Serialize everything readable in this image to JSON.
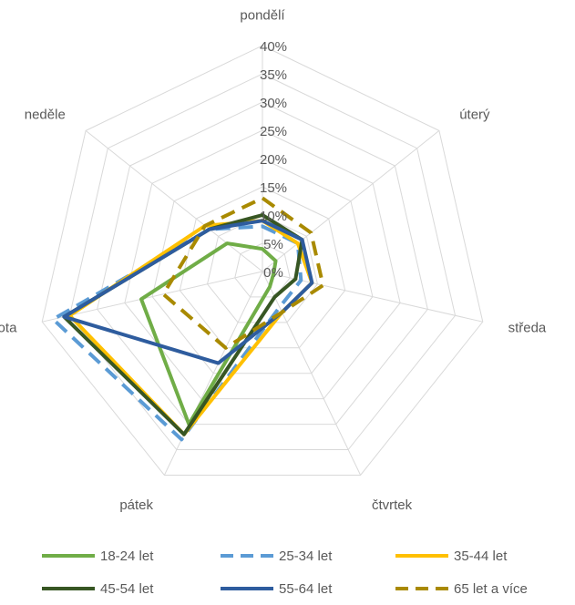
{
  "chart_data": {
    "type": "radar",
    "categories": [
      "pondělí",
      "úterý",
      "středa",
      "čtvrtek",
      "pátek",
      "sobota",
      "neděle"
    ],
    "rlim": [
      0,
      40
    ],
    "ticks": [
      0,
      5,
      10,
      15,
      20,
      25,
      30,
      35,
      40
    ],
    "tick_labels": [
      "0%",
      "5%",
      "10%",
      "15%",
      "20%",
      "25%",
      "30%",
      "35%",
      "40%"
    ],
    "grid": true,
    "legend": "bottom",
    "series": [
      {
        "name": "18-24 let",
        "color": "#70ad47",
        "dash": "solid",
        "width": 4,
        "values": [
          4,
          3,
          2,
          3,
          30,
          22,
          8
        ]
      },
      {
        "name": "25-34 let",
        "color": "#5b9bd5",
        "dash": "dashed",
        "width": 4,
        "values": [
          8,
          8,
          7,
          7,
          33,
          38,
          12
        ]
      },
      {
        "name": "35-44 let",
        "color": "#ffc000",
        "dash": "solid",
        "width": 4,
        "values": [
          9,
          8,
          9,
          8,
          32,
          35,
          13
        ]
      },
      {
        "name": "45-54 let",
        "color": "#375623",
        "dash": "solid",
        "width": 4,
        "values": [
          10,
          9,
          6,
          5,
          32,
          36,
          12
        ]
      },
      {
        "name": "55-64 let",
        "color": "#2e5c9e",
        "dash": "solid",
        "width": 4,
        "values": [
          9,
          9,
          9,
          8,
          18,
          36,
          12
        ]
      },
      {
        "name": "65 let a více",
        "color": "#a98a00",
        "dash": "dashed",
        "width": 4,
        "values": [
          13,
          11,
          11,
          8,
          15,
          18,
          13
        ]
      }
    ]
  }
}
